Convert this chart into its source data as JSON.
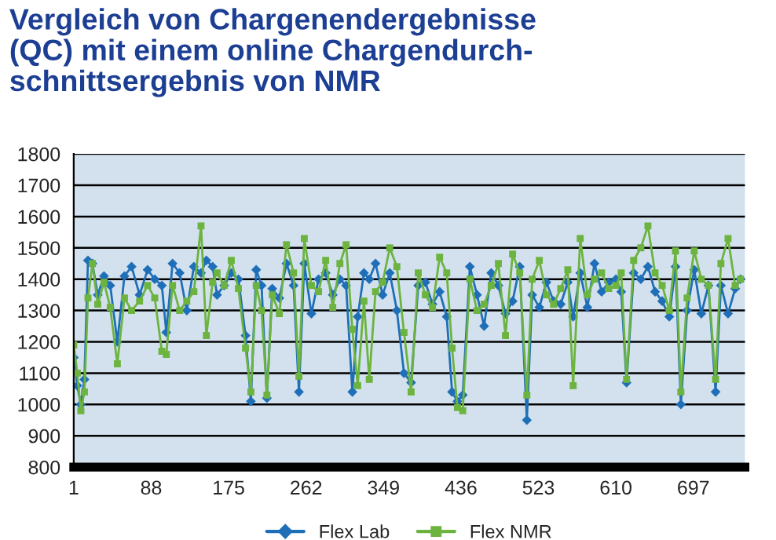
{
  "chart_data": {
    "type": "line",
    "title": "Vergleich von Chargenendergebnisse\n(QC) mit einem online Chargendurch-\nschnittsergebnis von NMR",
    "x": [
      1,
      5,
      9,
      13,
      17,
      22,
      28,
      35,
      42,
      50,
      58,
      66,
      75,
      84,
      92,
      100,
      105,
      112,
      120,
      128,
      136,
      144,
      150,
      157,
      162,
      170,
      178,
      186,
      194,
      200,
      206,
      212,
      218,
      224,
      232,
      240,
      248,
      254,
      260,
      268,
      276,
      284,
      292,
      300,
      307,
      314,
      320,
      327,
      333,
      340,
      348,
      356,
      364,
      372,
      380,
      388,
      396,
      404,
      412,
      420,
      426,
      432,
      438,
      446,
      454,
      462,
      470,
      478,
      486,
      494,
      502,
      510,
      516,
      524,
      532,
      540,
      548,
      556,
      562,
      570,
      578,
      586,
      594,
      602,
      610,
      616,
      622,
      630,
      638,
      646,
      654,
      662,
      670,
      677,
      683,
      690,
      698,
      706,
      714,
      722,
      728,
      736,
      744,
      750
    ],
    "series": [
      {
        "name": "Flex Lab",
        "color": "#1f6fb8",
        "marker": "diamond",
        "values": [
          1150,
          1060,
          1000,
          1080,
          1460,
          1450,
          1350,
          1410,
          1380,
          1200,
          1410,
          1440,
          1350,
          1430,
          1400,
          1380,
          1230,
          1450,
          1420,
          1300,
          1440,
          1420,
          1460,
          1440,
          1350,
          1380,
          1420,
          1400,
          1220,
          1010,
          1430,
          1380,
          1020,
          1370,
          1340,
          1450,
          1380,
          1040,
          1450,
          1290,
          1400,
          1420,
          1350,
          1400,
          1380,
          1040,
          1280,
          1420,
          1400,
          1450,
          1350,
          1420,
          1300,
          1100,
          1070,
          1380,
          1390,
          1320,
          1360,
          1280,
          1040,
          1010,
          1030,
          1440,
          1350,
          1250,
          1420,
          1380,
          1290,
          1330,
          1440,
          950,
          1350,
          1310,
          1390,
          1330,
          1320,
          1390,
          1280,
          1420,
          1310,
          1450,
          1360,
          1390,
          1400,
          1360,
          1070,
          1420,
          1400,
          1440,
          1360,
          1330,
          1280,
          1440,
          1000,
          1300,
          1430,
          1290,
          1380,
          1040,
          1380,
          1290,
          1370,
          1400
        ]
      },
      {
        "name": "Flex NMR",
        "color": "#6cb33f",
        "marker": "square",
        "values": [
          1190,
          1100,
          980,
          1040,
          1340,
          1450,
          1320,
          1390,
          1310,
          1130,
          1340,
          1300,
          1330,
          1380,
          1340,
          1170,
          1160,
          1380,
          1300,
          1330,
          1360,
          1570,
          1220,
          1390,
          1420,
          1380,
          1460,
          1370,
          1180,
          1040,
          1380,
          1300,
          1030,
          1350,
          1290,
          1510,
          1420,
          1090,
          1530,
          1380,
          1360,
          1460,
          1310,
          1450,
          1510,
          1240,
          1060,
          1330,
          1080,
          1360,
          1390,
          1500,
          1440,
          1230,
          1040,
          1420,
          1350,
          1310,
          1470,
          1420,
          1180,
          990,
          980,
          1400,
          1300,
          1320,
          1380,
          1450,
          1220,
          1480,
          1420,
          1030,
          1400,
          1460,
          1350,
          1320,
          1370,
          1430,
          1060,
          1530,
          1350,
          1400,
          1420,
          1370,
          1380,
          1420,
          1080,
          1460,
          1500,
          1570,
          1420,
          1380,
          1300,
          1490,
          1040,
          1340,
          1490,
          1400,
          1380,
          1080,
          1450,
          1530,
          1380,
          1400
        ]
      }
    ],
    "xlim": [
      1,
      755
    ],
    "xticks": [
      1,
      88,
      175,
      262,
      349,
      436,
      523,
      610,
      697
    ],
    "ylim": [
      800,
      1800
    ],
    "yticks": [
      800,
      900,
      1000,
      1100,
      1200,
      1300,
      1400,
      1500,
      1600,
      1700,
      1800
    ],
    "grid": "y",
    "legend": "bottom",
    "line_style": "solid"
  }
}
